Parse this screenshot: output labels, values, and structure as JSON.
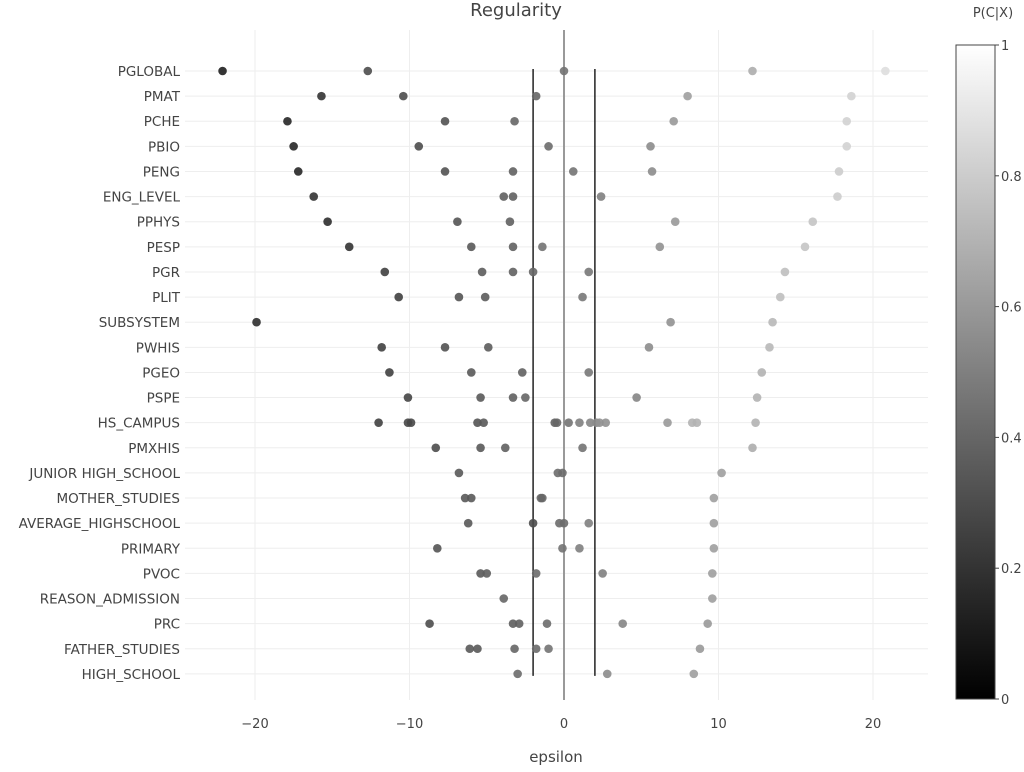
{
  "chart_data": {
    "type": "scatter",
    "title": "Regularity",
    "xlabel": "epsilon",
    "ylabel": "",
    "xlim": [
      -25,
      24
    ],
    "x_ticks": [
      -20,
      -10,
      0,
      10,
      20
    ],
    "x_tick_labels": [
      "−20",
      "−10",
      "0",
      "10",
      "20"
    ],
    "grid": true,
    "vertical_lines": [
      {
        "x": -2,
        "color": "#222222"
      },
      {
        "x": 2,
        "color": "#222222"
      },
      {
        "x": 0,
        "color": "#999999"
      }
    ],
    "colorbar": {
      "title": "P(C|X)",
      "range": [
        0,
        1
      ],
      "ticks": [
        "0",
        "0.2",
        "0.4",
        "0.6",
        "0.8",
        "1"
      ],
      "colorscale": [
        "#000000",
        "#ffffff"
      ]
    },
    "categories": [
      "PGLOBAL",
      "PMAT",
      "PCHE",
      "PBIO",
      "PENG",
      "ENG_LEVEL",
      "PPHYS",
      "PESP",
      "PGR",
      "PLIT",
      "SUBSYSTEM",
      "PWHIS",
      "PGEO",
      "PSPE",
      "HS_CAMPUS",
      "PMXHIS",
      "JUNIOR HIGH_SCHOOL",
      "MOTHER_STUDIES",
      "AVERAGE_HIGHSCHOOL",
      "PRIMARY",
      "PVOC",
      "REASON_ADMISSION",
      "PRC",
      "FATHER_STUDIES",
      "HIGH_SCHOOL"
    ],
    "points_note_fields": [
      "epsilon",
      "P(C|X)"
    ],
    "points": [
      [
        [
          -22.1,
          0.12
        ],
        [
          -12.7,
          0.3
        ],
        [
          0,
          0.45
        ],
        [
          12.2,
          0.68
        ],
        [
          20.8,
          0.87
        ]
      ],
      [
        [
          -15.7,
          0.2
        ],
        [
          -10.4,
          0.3
        ],
        [
          -1.8,
          0.4
        ],
        [
          8.0,
          0.62
        ],
        [
          18.6,
          0.82
        ]
      ],
      [
        [
          -17.9,
          0.15
        ],
        [
          -7.7,
          0.32
        ],
        [
          -3.2,
          0.4
        ],
        [
          7.1,
          0.6
        ],
        [
          18.3,
          0.82
        ]
      ],
      [
        [
          -17.5,
          0.15
        ],
        [
          -9.4,
          0.3
        ],
        [
          -1.0,
          0.42
        ],
        [
          5.6,
          0.55
        ],
        [
          18.3,
          0.82
        ]
      ],
      [
        [
          -17.2,
          0.15
        ],
        [
          -7.7,
          0.32
        ],
        [
          -3.3,
          0.38
        ],
        [
          0.6,
          0.45
        ],
        [
          5.7,
          0.55
        ],
        [
          17.8,
          0.8
        ]
      ],
      [
        [
          -16.2,
          0.2
        ],
        [
          -3.9,
          0.38
        ],
        [
          -3.3,
          0.38
        ],
        [
          2.4,
          0.5
        ],
        [
          17.7,
          0.8
        ]
      ],
      [
        [
          -15.3,
          0.18
        ],
        [
          -6.9,
          0.33
        ],
        [
          -3.5,
          0.38
        ],
        [
          7.2,
          0.6
        ],
        [
          16.1,
          0.77
        ]
      ],
      [
        [
          -13.9,
          0.2
        ],
        [
          -6.0,
          0.35
        ],
        [
          -3.3,
          0.38
        ],
        [
          -1.4,
          0.45
        ],
        [
          6.2,
          0.57
        ],
        [
          15.6,
          0.77
        ]
      ],
      [
        [
          -11.6,
          0.25
        ],
        [
          -5.3,
          0.36
        ],
        [
          -3.3,
          0.38
        ],
        [
          -2.0,
          0.4
        ],
        [
          1.6,
          0.47
        ],
        [
          14.3,
          0.75
        ]
      ],
      [
        [
          -10.7,
          0.25
        ],
        [
          -6.8,
          0.33
        ],
        [
          -5.1,
          0.36
        ],
        [
          1.2,
          0.47
        ],
        [
          14.0,
          0.75
        ]
      ],
      [
        [
          -19.9,
          0.18
        ],
        [
          6.9,
          0.57
        ],
        [
          13.5,
          0.72
        ]
      ],
      [
        [
          -11.8,
          0.25
        ],
        [
          -7.7,
          0.32
        ],
        [
          -4.9,
          0.36
        ],
        [
          5.5,
          0.55
        ],
        [
          13.3,
          0.72
        ]
      ],
      [
        [
          -11.3,
          0.25
        ],
        [
          -6.0,
          0.35
        ],
        [
          -2.7,
          0.38
        ],
        [
          1.6,
          0.47
        ],
        [
          12.8,
          0.7
        ]
      ],
      [
        [
          -10.1,
          0.27
        ],
        [
          -5.4,
          0.35
        ],
        [
          -3.3,
          0.38
        ],
        [
          -2.5,
          0.4
        ],
        [
          4.7,
          0.52
        ],
        [
          12.5,
          0.7
        ]
      ],
      [
        [
          -12.0,
          0.25
        ],
        [
          -10.1,
          0.28
        ],
        [
          -9.9,
          0.28
        ],
        [
          -5.6,
          0.33
        ],
        [
          -5.2,
          0.35
        ],
        [
          -0.6,
          0.38
        ],
        [
          -0.45,
          0.4
        ],
        [
          0.3,
          0.45
        ],
        [
          1.0,
          0.5
        ],
        [
          1.7,
          0.52
        ],
        [
          2.1,
          0.55
        ],
        [
          2.3,
          0.57
        ],
        [
          2.7,
          0.57
        ],
        [
          6.7,
          0.6
        ],
        [
          8.3,
          0.7
        ],
        [
          8.6,
          0.7
        ],
        [
          12.4,
          0.7
        ]
      ],
      [
        [
          -8.3,
          0.3
        ],
        [
          -5.4,
          0.35
        ],
        [
          -3.8,
          0.38
        ],
        [
          1.2,
          0.45
        ],
        [
          12.2,
          0.68
        ]
      ],
      [
        [
          -6.8,
          0.35
        ],
        [
          -0.4,
          0.42
        ],
        [
          -0.1,
          0.42
        ],
        [
          10.2,
          0.62
        ]
      ],
      [
        [
          -6.4,
          0.35
        ],
        [
          -6.0,
          0.35
        ],
        [
          -1.5,
          0.4
        ],
        [
          -1.4,
          0.4
        ],
        [
          9.7,
          0.62
        ]
      ],
      [
        [
          -6.2,
          0.35
        ],
        [
          -2.0,
          0.3
        ],
        [
          -0.3,
          0.42
        ],
        [
          0,
          0.42
        ],
        [
          1.6,
          0.5
        ],
        [
          9.7,
          0.62
        ]
      ],
      [
        [
          -8.2,
          0.33
        ],
        [
          -0.1,
          0.45
        ],
        [
          1.0,
          0.5
        ],
        [
          9.7,
          0.62
        ]
      ],
      [
        [
          -5.4,
          0.35
        ],
        [
          -5.0,
          0.37
        ],
        [
          -1.8,
          0.42
        ],
        [
          2.5,
          0.5
        ],
        [
          9.6,
          0.62
        ]
      ],
      [
        [
          -3.9,
          0.4
        ],
        [
          9.6,
          0.62
        ]
      ],
      [
        [
          -8.7,
          0.3
        ],
        [
          -3.3,
          0.37
        ],
        [
          -2.9,
          0.38
        ],
        [
          -1.1,
          0.42
        ],
        [
          3.8,
          0.52
        ],
        [
          9.3,
          0.6
        ]
      ],
      [
        [
          -6.1,
          0.35
        ],
        [
          -5.6,
          0.35
        ],
        [
          -3.2,
          0.4
        ],
        [
          -1.8,
          0.42
        ],
        [
          -1.0,
          0.45
        ],
        [
          8.8,
          0.6
        ]
      ],
      [
        [
          -3.0,
          0.42
        ],
        [
          2.8,
          0.55
        ],
        [
          8.4,
          0.62
        ]
      ]
    ]
  }
}
